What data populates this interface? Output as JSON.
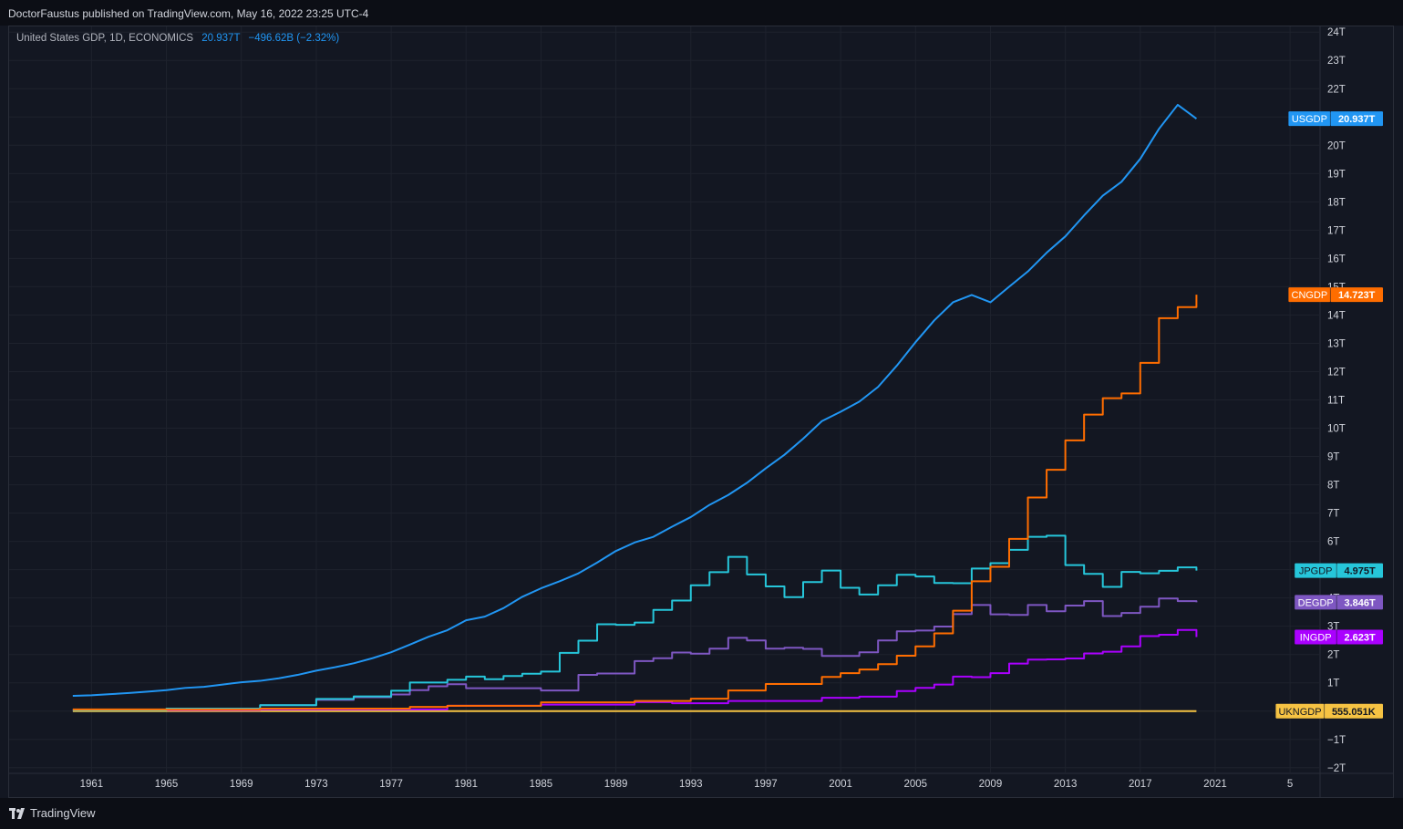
{
  "header": {
    "publisher_line": "DoctorFaustus published on TradingView.com, May 16, 2022 23:25 UTC-4"
  },
  "legend": {
    "symbol_text": "United States GDP, 1D, ECONOMICS",
    "value": "20.937T",
    "change": "−496.62B (−2.32%)"
  },
  "footer": {
    "brand": "TradingView",
    "logo_icon": "tradingview-logo-icon"
  },
  "colors": {
    "background": "#131722",
    "grid": "#1e222d",
    "axis_text": "#d1d4dc"
  },
  "chart_data": {
    "type": "line",
    "xlabel": "",
    "ylabel": "",
    "x_ticks": [
      "1961",
      "1965",
      "1969",
      "1973",
      "1977",
      "1981",
      "1985",
      "1989",
      "1993",
      "1997",
      "2001",
      "2005",
      "2009",
      "2013",
      "2017",
      "2021",
      "5"
    ],
    "y_ticks": [
      "24T",
      "23T",
      "22T",
      "21T",
      "20T",
      "19T",
      "18T",
      "17T",
      "16T",
      "15T",
      "14T",
      "13T",
      "12T",
      "11T",
      "10T",
      "9T",
      "8T",
      "7T",
      "6T",
      "5T",
      "4T",
      "3T",
      "2T",
      "1T",
      "0",
      "−1T",
      "−2T"
    ],
    "xlim": [
      1956.6,
      2026.6
    ],
    "ylim": [
      -2.2,
      24.2
    ],
    "grid": true,
    "legend_position": "right-axis-labels",
    "series": [
      {
        "name": "USGDP",
        "value_label": "20.937T",
        "color": "#2196f3",
        "style": "line",
        "x": [
          1960,
          1961,
          1962,
          1963,
          1964,
          1965,
          1966,
          1967,
          1968,
          1969,
          1970,
          1971,
          1972,
          1973,
          1974,
          1975,
          1976,
          1977,
          1978,
          1979,
          1980,
          1981,
          1982,
          1983,
          1984,
          1985,
          1986,
          1987,
          1988,
          1989,
          1990,
          1991,
          1992,
          1993,
          1994,
          1995,
          1996,
          1997,
          1998,
          1999,
          2000,
          2001,
          2002,
          2003,
          2004,
          2005,
          2006,
          2007,
          2008,
          2009,
          2010,
          2011,
          2012,
          2013,
          2014,
          2015,
          2016,
          2017,
          2018,
          2019,
          2020
        ],
        "y": [
          0.54,
          0.56,
          0.6,
          0.64,
          0.69,
          0.74,
          0.82,
          0.86,
          0.94,
          1.02,
          1.07,
          1.16,
          1.28,
          1.43,
          1.55,
          1.69,
          1.87,
          2.08,
          2.35,
          2.63,
          2.86,
          3.21,
          3.34,
          3.64,
          4.04,
          4.34,
          4.59,
          4.87,
          5.25,
          5.66,
          5.96,
          6.16,
          6.52,
          6.86,
          7.29,
          7.64,
          8.07,
          8.58,
          9.06,
          9.63,
          10.25,
          10.58,
          10.94,
          11.46,
          12.21,
          13.04,
          13.81,
          14.45,
          14.71,
          14.45,
          15.0,
          15.54,
          16.2,
          16.78,
          17.52,
          18.22,
          18.71,
          19.52,
          20.58,
          21.43,
          20.94
        ]
      },
      {
        "name": "CNGDP",
        "value_label": "14.723T",
        "color": "#ff6d00",
        "style": "step",
        "x": [
          1960,
          1970,
          1978,
          1980,
          1985,
          1990,
          1993,
          1995,
          1997,
          2000,
          2001,
          2002,
          2003,
          2004,
          2005,
          2006,
          2007,
          2008,
          2009,
          2010,
          2011,
          2012,
          2013,
          2014,
          2015,
          2016,
          2017,
          2018,
          2019,
          2020
        ],
        "y": [
          0.06,
          0.09,
          0.15,
          0.19,
          0.31,
          0.36,
          0.44,
          0.73,
          0.96,
          1.21,
          1.34,
          1.47,
          1.66,
          1.96,
          2.29,
          2.75,
          3.55,
          4.59,
          5.1,
          6.09,
          7.55,
          8.53,
          9.57,
          10.48,
          11.06,
          11.23,
          12.31,
          13.89,
          14.28,
          14.72
        ]
      },
      {
        "name": "JPGDP",
        "value_label": "4.975T",
        "color": "#26c6da",
        "style": "step",
        "x": [
          1960,
          1965,
          1970,
          1973,
          1975,
          1977,
          1978,
          1980,
          1981,
          1982,
          1983,
          1984,
          1985,
          1986,
          1987,
          1988,
          1989,
          1990,
          1991,
          1992,
          1993,
          1994,
          1995,
          1996,
          1997,
          1998,
          1999,
          2000,
          2001,
          2002,
          2003,
          2004,
          2005,
          2006,
          2007,
          2008,
          2009,
          2010,
          2011,
          2012,
          2013,
          2014,
          2015,
          2016,
          2017,
          2018,
          2019,
          2020
        ],
        "y": [
          0.04,
          0.09,
          0.21,
          0.43,
          0.52,
          0.72,
          1.01,
          1.11,
          1.22,
          1.13,
          1.24,
          1.32,
          1.4,
          2.06,
          2.49,
          3.07,
          3.05,
          3.13,
          3.58,
          3.91,
          4.45,
          4.91,
          5.45,
          4.83,
          4.41,
          4.03,
          4.56,
          4.97,
          4.36,
          4.12,
          4.45,
          4.82,
          4.76,
          4.53,
          4.52,
          5.04,
          5.23,
          5.7,
          6.16,
          6.2,
          5.16,
          4.85,
          4.39,
          4.92,
          4.87,
          4.96,
          5.08,
          4.97
        ]
      },
      {
        "name": "DEGDP",
        "value_label": "3.846T",
        "color": "#7e57c2",
        "style": "step",
        "x": [
          1970,
          1973,
          1975,
          1977,
          1978,
          1979,
          1980,
          1981,
          1985,
          1987,
          1988,
          1990,
          1991,
          1992,
          1993,
          1994,
          1995,
          1996,
          1997,
          1998,
          1999,
          2000,
          2001,
          2002,
          2003,
          2004,
          2005,
          2006,
          2007,
          2008,
          2009,
          2010,
          2011,
          2012,
          2013,
          2014,
          2015,
          2016,
          2017,
          2018,
          2019,
          2020
        ],
        "y": [
          0.21,
          0.4,
          0.49,
          0.59,
          0.74,
          0.88,
          0.95,
          0.81,
          0.73,
          1.28,
          1.33,
          1.77,
          1.87,
          2.07,
          2.03,
          2.21,
          2.59,
          2.5,
          2.21,
          2.24,
          2.2,
          1.95,
          1.95,
          2.08,
          2.5,
          2.82,
          2.85,
          2.99,
          3.43,
          3.75,
          3.42,
          3.4,
          3.75,
          3.53,
          3.73,
          3.89,
          3.36,
          3.47,
          3.69,
          3.98,
          3.89,
          3.85
        ]
      },
      {
        "name": "INGDP",
        "value_label": "2.623T",
        "color": "#aa00ff",
        "style": "step",
        "x": [
          1960,
          1970,
          1980,
          1985,
          1990,
          1992,
          1995,
          2000,
          2002,
          2004,
          2005,
          2006,
          2007,
          2008,
          2009,
          2010,
          2011,
          2012,
          2013,
          2014,
          2015,
          2016,
          2017,
          2018,
          2019,
          2020
        ],
        "y": [
          0.04,
          0.06,
          0.19,
          0.23,
          0.32,
          0.28,
          0.36,
          0.47,
          0.51,
          0.71,
          0.82,
          0.94,
          1.22,
          1.2,
          1.34,
          1.68,
          1.82,
          1.83,
          1.86,
          2.04,
          2.1,
          2.29,
          2.65,
          2.7,
          2.87,
          2.62
        ]
      },
      {
        "name": "UKNGDP",
        "value_label": "555.051K",
        "color": "#f6c343",
        "style": "line",
        "x": [
          1960,
          2020
        ],
        "y": [
          0.0,
          0.0
        ]
      }
    ]
  }
}
